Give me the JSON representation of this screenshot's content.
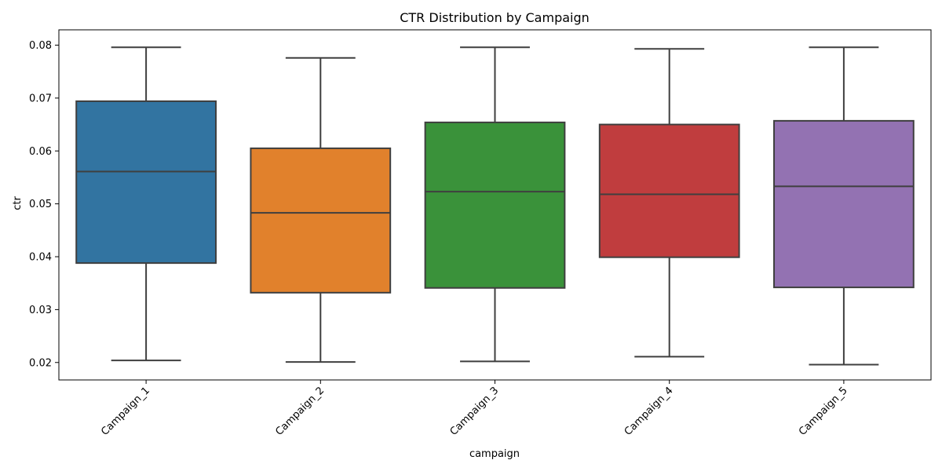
{
  "chart_data": {
    "type": "box",
    "title": "CTR Distribution by Campaign",
    "xlabel": "campaign",
    "ylabel": "ctr",
    "ylim": [
      0.0167,
      0.0829
    ],
    "yticks": [
      0.02,
      0.03,
      0.04,
      0.05,
      0.06,
      0.07,
      0.08
    ],
    "ytick_labels": [
      "0.02",
      "0.03",
      "0.04",
      "0.05",
      "0.06",
      "0.07",
      "0.08"
    ],
    "categories": [
      "Campaign_1",
      "Campaign_2",
      "Campaign_3",
      "Campaign_4",
      "Campaign_5"
    ],
    "boxes": [
      {
        "name": "Campaign_1",
        "whisker_low": 0.0204,
        "q1": 0.0388,
        "median": 0.0561,
        "q3": 0.0694,
        "whisker_high": 0.0796,
        "color": "#3274a1"
      },
      {
        "name": "Campaign_2",
        "whisker_low": 0.0201,
        "q1": 0.0332,
        "median": 0.0483,
        "q3": 0.0605,
        "whisker_high": 0.0776,
        "color": "#e1812c"
      },
      {
        "name": "Campaign_3",
        "whisker_low": 0.0202,
        "q1": 0.0341,
        "median": 0.0523,
        "q3": 0.0654,
        "whisker_high": 0.0796,
        "color": "#3a923a"
      },
      {
        "name": "Campaign_4",
        "whisker_low": 0.0211,
        "q1": 0.0399,
        "median": 0.0518,
        "q3": 0.065,
        "whisker_high": 0.0793,
        "color": "#c03d3e"
      },
      {
        "name": "Campaign_5",
        "whisker_low": 0.0196,
        "q1": 0.0342,
        "median": 0.0533,
        "q3": 0.0657,
        "whisker_high": 0.0796,
        "color": "#9372b2"
      }
    ],
    "line_color": "#3f3f3f",
    "grid": false,
    "legend": "none"
  }
}
